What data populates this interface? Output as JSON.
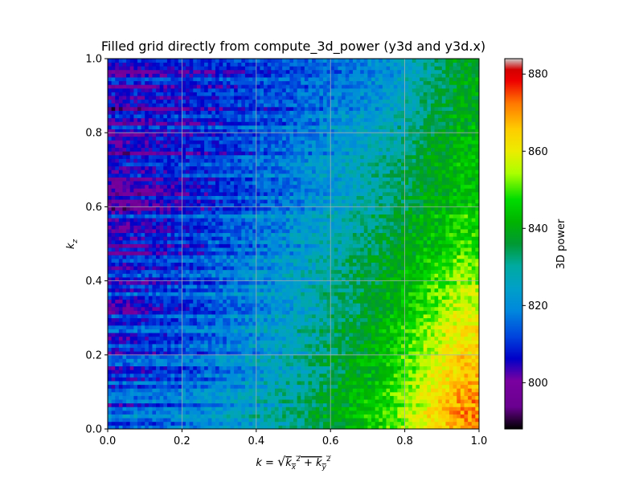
{
  "chart_data": {
    "type": "heatmap",
    "title": "Filled grid directly from compute_3d_power (y3d and y3d.x)",
    "xlabel": "k = √(k_x² + k_y²)",
    "ylabel": "k_z",
    "xlim": [
      0.0,
      1.0
    ],
    "ylim": [
      0.0,
      1.0
    ],
    "xticks": [
      "0.0",
      "0.2",
      "0.4",
      "0.6",
      "0.8",
      "1.0"
    ],
    "yticks": [
      "0.0",
      "0.2",
      "0.4",
      "0.6",
      "0.8",
      "1.0"
    ],
    "grid": true,
    "colormap": "nipy_spectral",
    "colorbar": {
      "label": "3D power",
      "range": [
        788,
        884
      ],
      "ticks": [
        "800",
        "820",
        "840",
        "860",
        "880"
      ]
    },
    "grid_shape": {
      "rows": 100,
      "cols": 100
    },
    "trend": "power rises with k; near k = 1.0 values reach about 870-880 at low k_z, about 840 at high k_z; low-k region about 795-825",
    "sample_values": {
      "k": [
        0.05,
        0.25,
        0.5,
        0.75,
        0.95
      ],
      "kz": [
        0.05,
        0.25,
        0.5,
        0.75,
        0.95
      ],
      "z": [
        [
          812,
          818,
          830,
          848,
          870
        ],
        [
          808,
          814,
          826,
          842,
          862
        ],
        [
          805,
          812,
          822,
          836,
          848
        ],
        [
          804,
          809,
          817,
          829,
          842
        ],
        [
          803,
          807,
          812,
          820,
          838
        ]
      ]
    }
  }
}
